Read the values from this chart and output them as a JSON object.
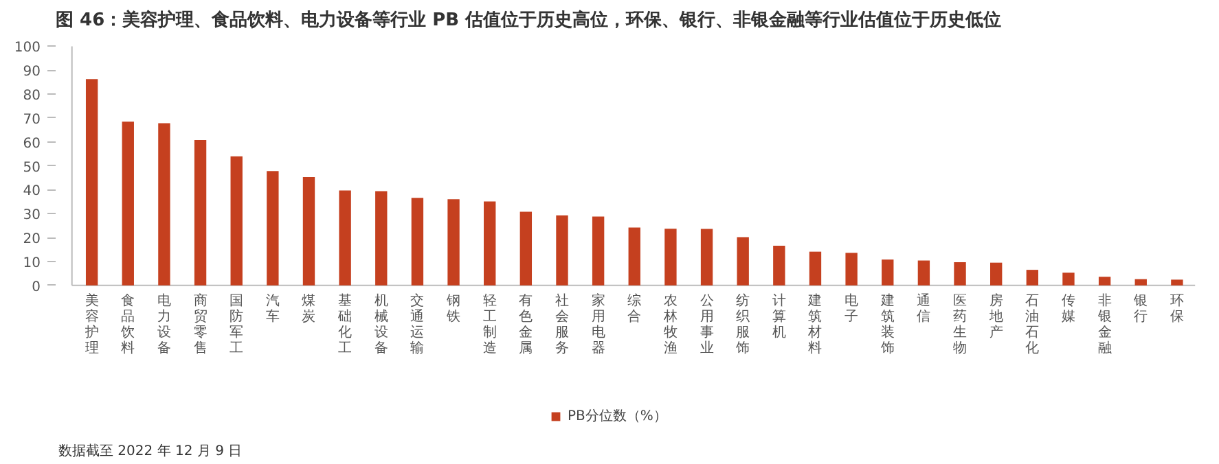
{
  "chart_data": {
    "type": "bar",
    "title": "图 46：美容护理、食品饮料、电力设备等行业 PB 估值位于历史高位，环保、银行、非银金融等行业估值位于历史低位",
    "categories": [
      "美容护理",
      "食品饮料",
      "电力设备",
      "商贸零售",
      "国防军工",
      "汽车",
      "煤炭",
      "基础化工",
      "机械设备",
      "交通运输",
      "钢铁",
      "轻工制造",
      "有色金属",
      "社会服务",
      "家用电器",
      "综合",
      "农林牧渔",
      "公用事业",
      "纺织服饰",
      "计算机",
      "建筑材料",
      "电子",
      "建筑装饰",
      "通信",
      "医药生物",
      "房地产",
      "石油石化",
      "传媒",
      "非银金融",
      "银行",
      "环保"
    ],
    "series": [
      {
        "name": "PB分位数（%）",
        "color": "#c5401f",
        "values": [
          86.3,
          68.5,
          67.8,
          60.8,
          54.0,
          47.8,
          45.3,
          39.7,
          39.4,
          36.6,
          36.0,
          35.1,
          30.8,
          29.3,
          28.8,
          24.2,
          23.7,
          23.6,
          20.2,
          16.6,
          14.1,
          13.6,
          10.8,
          10.4,
          9.7,
          9.5,
          6.5,
          5.3,
          3.6,
          2.6,
          2.4
        ]
      }
    ],
    "ylim": [
      0,
      100
    ],
    "yticks": [
      0,
      10,
      20,
      30,
      40,
      50,
      60,
      70,
      80,
      90,
      100
    ],
    "grid": false,
    "legend": "bottom",
    "annotations": [
      "数据截至 2022 年 12 月 9 日"
    ]
  }
}
